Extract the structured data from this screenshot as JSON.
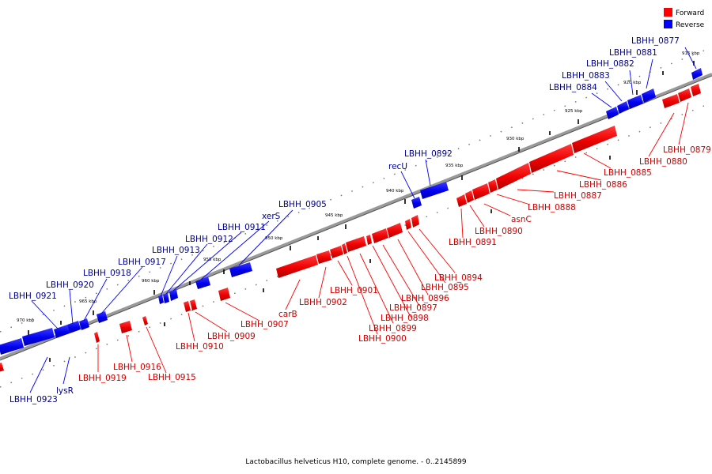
{
  "caption": "Lactobacillus helveticus H10, complete genome. - 0..2145899",
  "legend": [
    {
      "label": "Forward",
      "color": "#ff0000"
    },
    {
      "label": "Reverse",
      "color": "#0000ff"
    }
  ],
  "colors": {
    "forward": "#ff0000",
    "reverse": "#0000ff",
    "label_forward": "#cc0000",
    "label_reverse": "#00008b",
    "backbone": "#777777"
  },
  "ticks": [
    "915 kbp",
    "920 kbp",
    "925 kbp",
    "930 kbp",
    "935 kbp",
    "940 kbp",
    "945 kbp",
    "950 kbp",
    "955 kbp",
    "960 kbp",
    "965 kbp",
    "970 kbp"
  ],
  "genes": {
    "reverse": [
      "LBHH_0877",
      "LBHH_0881",
      "LBHH_0882",
      "LBHH_0883",
      "LBHH_0884",
      "LBHH_0892",
      "recU",
      "LBHH_0905",
      "xerS",
      "LBHH_0911",
      "LBHH_0912",
      "LBHH_0913",
      "LBHH_0917",
      "LBHH_0918",
      "LBHH_0920",
      "LBHH_0921",
      "LBHH_0923",
      "lysR"
    ],
    "forward": [
      "LBHH_0879",
      "LBHH_0880",
      "LBHH_0885",
      "LBHH_0886",
      "LBHH_0887",
      "LBHH_0888",
      "asnC",
      "LBHH_0890",
      "LBHH_0891",
      "LBHH_0894",
      "LBHH_0895",
      "LBHH_0896",
      "LBHH_0897",
      "LBHH_0898",
      "LBHH_0899",
      "LBHH_0900",
      "LBHH_0901",
      "LBHH_0902",
      "carB",
      "LBHH_0907",
      "LBHH_0909",
      "LBHH_0910",
      "LBHH_0916",
      "LBHH_0915",
      "LBHH_0919"
    ]
  }
}
